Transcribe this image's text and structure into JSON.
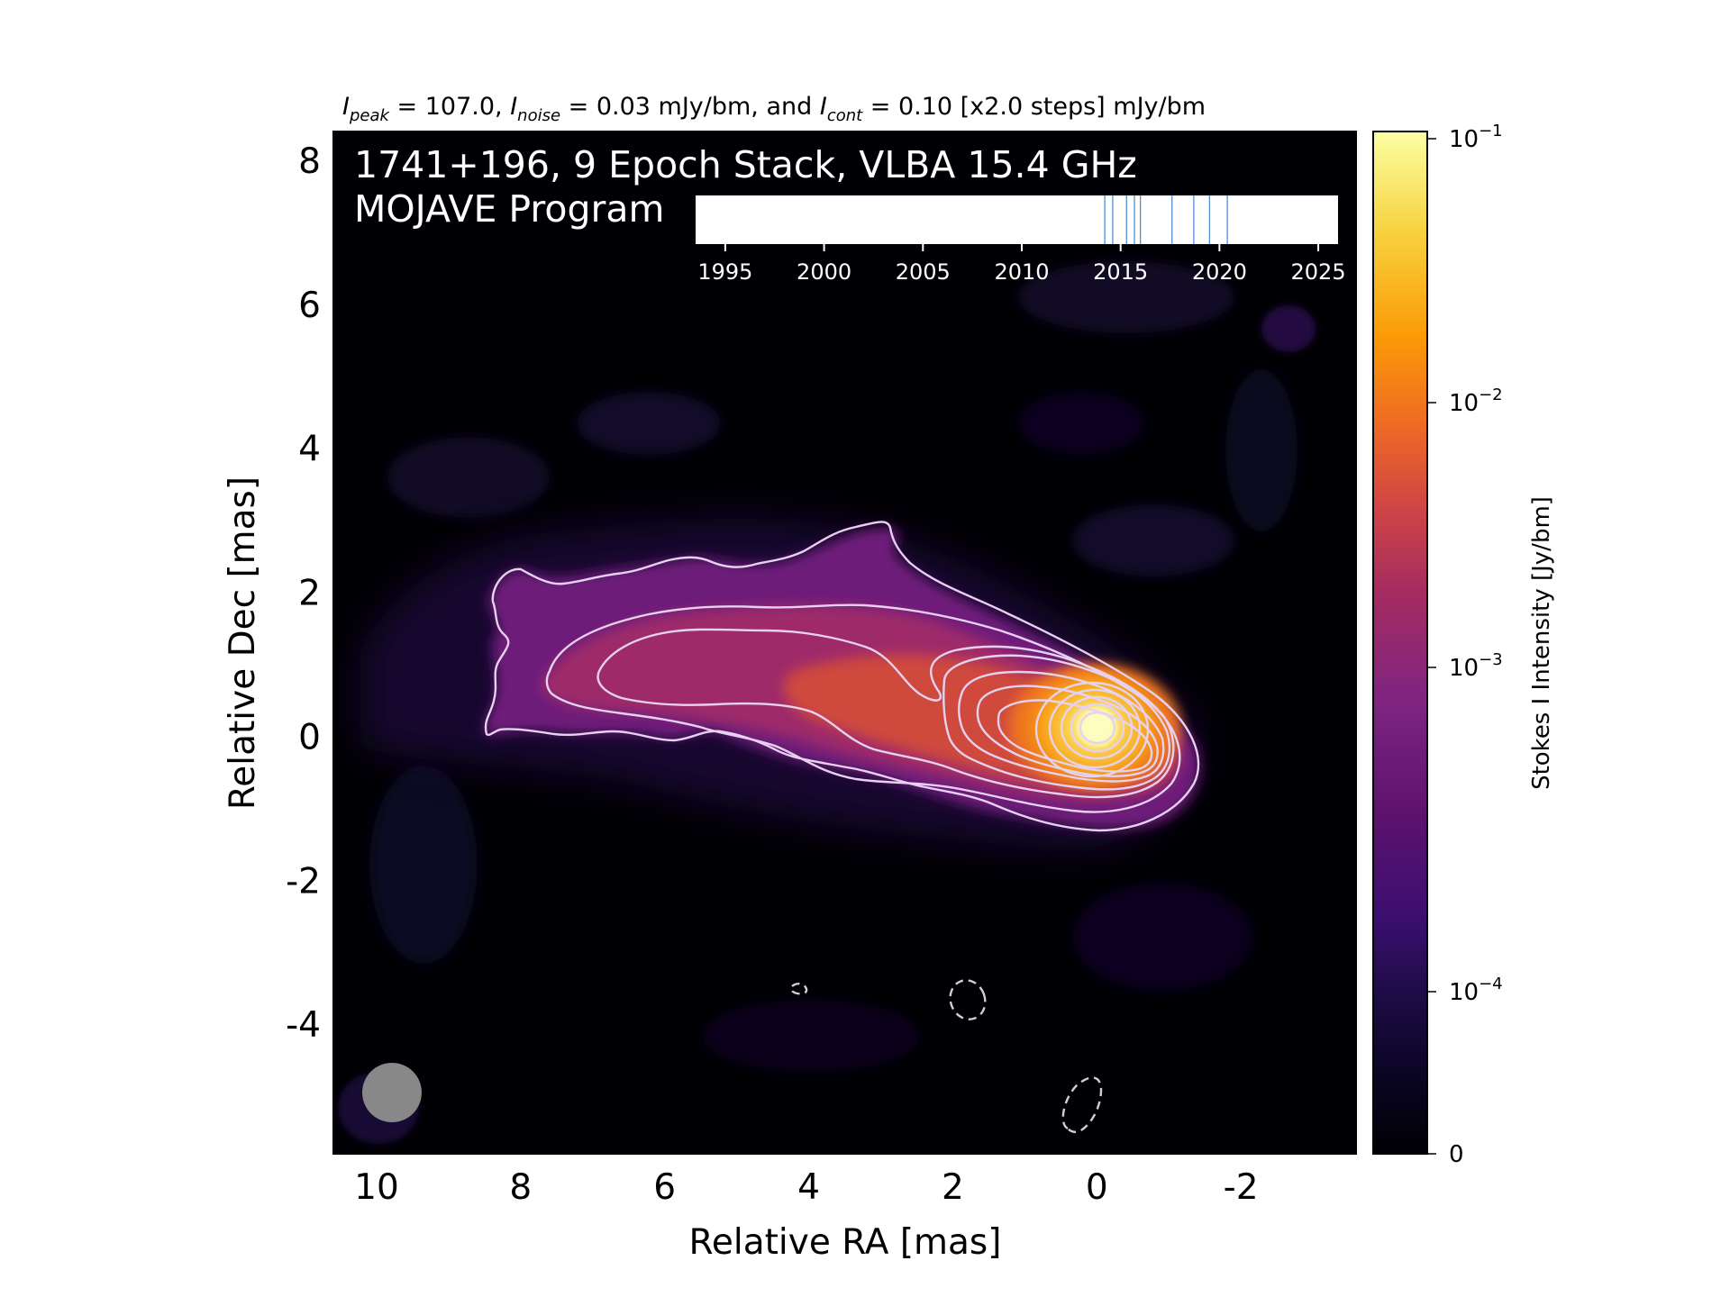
{
  "chart_data": {
    "type": "heatmap",
    "title": {
      "i_peak_sym": "I",
      "i_peak_sub": "peak",
      "i_peak_val": " = 107.0, ",
      "i_noise_sym": "I",
      "i_noise_sub": "noise",
      "i_noise_val": " = 0.03 mJy/bm, and ",
      "i_cont_sym": "I",
      "i_cont_sub": "cont",
      "i_cont_val": " = 0.10 [x2.0 steps] mJy/bm"
    },
    "annotation": {
      "line1": "1741+196, 9 Epoch Stack, VLBA 15.4 GHz",
      "line2": "MOJAVE Program"
    },
    "xlabel": "Relative RA [mas]",
    "ylabel": "Relative Dec [mas]",
    "xlim": [
      10.6,
      -3.6
    ],
    "ylim": [
      -5.8,
      8.4
    ],
    "x_ticks": [
      {
        "value": 10,
        "label": "10"
      },
      {
        "value": 8,
        "label": "8"
      },
      {
        "value": 6,
        "label": "6"
      },
      {
        "value": 4,
        "label": "4"
      },
      {
        "value": 2,
        "label": "2"
      },
      {
        "value": 0,
        "label": "0"
      },
      {
        "value": -2,
        "label": "-2"
      }
    ],
    "y_ticks": [
      {
        "value": 8,
        "label": "8"
      },
      {
        "value": 6,
        "label": "6"
      },
      {
        "value": 4,
        "label": "4"
      },
      {
        "value": 2,
        "label": "2"
      },
      {
        "value": 0,
        "label": "0"
      },
      {
        "value": -2,
        "label": "-2"
      },
      {
        "value": -4,
        "label": "-4"
      }
    ],
    "colorbar": {
      "label": "Stokes I Intensity [Jy/bm]",
      "colormap": "inferno",
      "ticks": [
        {
          "base": "10",
          "exp": "−1",
          "value": 0.1
        },
        {
          "base": "10",
          "exp": "−2",
          "value": 0.01
        },
        {
          "base": "10",
          "exp": "−3",
          "value": 0.001
        },
        {
          "base": "10",
          "exp": "−4",
          "value": 0.0001
        },
        {
          "base": "",
          "exp": "",
          "label": "0",
          "value": 0
        }
      ]
    },
    "epoch_timeline": {
      "xlim": [
        1993.5,
        2026.0
      ],
      "ticks": [
        {
          "value": 1995,
          "label": "1995"
        },
        {
          "value": 2000,
          "label": "2000"
        },
        {
          "value": 2005,
          "label": "2005"
        },
        {
          "value": 2010,
          "label": "2010"
        },
        {
          "value": 2015,
          "label": "2015"
        },
        {
          "value": 2020,
          "label": "2020"
        },
        {
          "value": 2025,
          "label": "2025"
        }
      ],
      "epochs": [
        2014.2,
        2014.6,
        2015.3,
        2015.7,
        2016.0,
        2017.6,
        2018.7,
        2019.5,
        2020.4
      ],
      "line_color": "#4f8fd0"
    },
    "source": {
      "core": {
        "ra": 0.0,
        "dec": 0.0
      },
      "peak_jy_per_beam": 0.107,
      "jet_direction": "east (positive RA)",
      "jet_extent_mas": 8.4
    },
    "beam": {
      "major_mas": 0.8,
      "minor_mas": 0.8,
      "color": "#888888"
    },
    "contours": {
      "base_mjy_per_bm": 0.1,
      "step_factor": 2.0,
      "positive_color": "#e6d2f0",
      "negative_color": "#d0d0d0",
      "negative_style": "dashed"
    }
  }
}
